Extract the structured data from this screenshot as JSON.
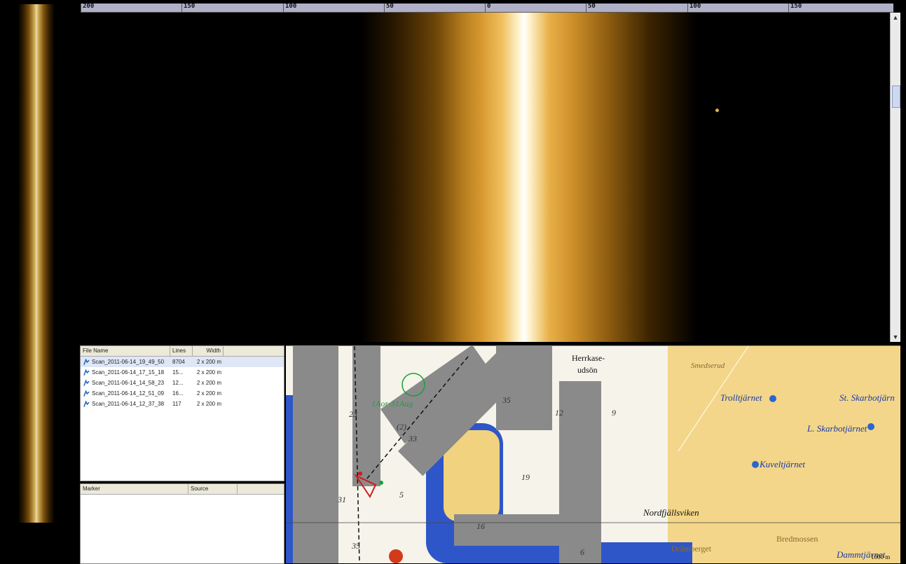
{
  "ruler": {
    "labels": [
      "200",
      "150",
      "100",
      "50",
      "0",
      "50",
      "100",
      "150"
    ]
  },
  "scrollbar": {
    "up_icon": "chevron-up-icon",
    "down_icon": "chevron-down-icon"
  },
  "file_list": {
    "headers": {
      "name": "File Name",
      "lines": "Lines",
      "width": "Width"
    },
    "rows": [
      {
        "name": "Scan_2011-06-14_19_49_50",
        "lines": "8704",
        "width": "2 x 200 m"
      },
      {
        "name": "Scan_2011-06-14_17_15_18",
        "lines": "15...",
        "width": "2 x 200 m"
      },
      {
        "name": "Scan_2011-06-14_14_58_23",
        "lines": "12...",
        "width": "2 x 200 m"
      },
      {
        "name": "Scan_2011-06-14_12_51_09",
        "lines": "16...",
        "width": "2 x 200 m"
      },
      {
        "name": "Scan_2011-06-14_12_37_38",
        "lines": "117",
        "width": "2 x 200 m"
      }
    ]
  },
  "marker_list": {
    "headers": {
      "marker": "Marker",
      "source": "Source"
    }
  },
  "map": {
    "labels": {
      "herrkase": "Herrkase-",
      "udson": "udsön",
      "smedserud": "Smedserud",
      "trolltjarnet": "Trolltjärnet",
      "st_skarbotjarn": "St. Skarbotjärn",
      "l_skarbotjarnet": "L. Skarbotjärnet",
      "kuveltjarnet": "Kuveltjärnet",
      "nordfjallsviken": "Nordfjällsviken",
      "dramberget": "Dråmberget",
      "bredmossen": "Bredmossen",
      "dammtjarnet": "Dammtjärnet",
      "marker_label": "1Aor-31Aug",
      "scale": "1000 m"
    },
    "depths": [
      "23",
      "35",
      "12",
      "9",
      "33",
      "(2)",
      "5",
      "19",
      "31",
      "16",
      "6",
      "35"
    ]
  }
}
